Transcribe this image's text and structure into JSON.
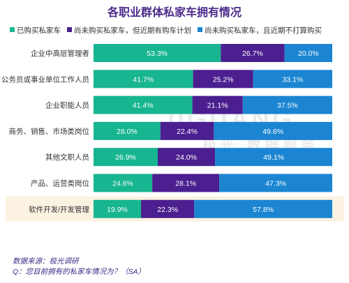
{
  "title": "各职业群体私家车拥有情况",
  "watermark": {
    "en": "JIGUANG",
    "cn": "极光 数据服务"
  },
  "chart_data": {
    "type": "bar",
    "orientation": "horizontal",
    "stacked": true,
    "percent_unit": "%",
    "categories": [
      "企业中高层管理者",
      "公务员或事业单位工作人员",
      "企业职能人员",
      "商务、销售、市场类岗位",
      "其他文职人员",
      "产品、运营类岗位",
      "软件开发/开发管理"
    ],
    "highlighted_category": "软件开发/开发管理",
    "series": [
      {
        "name": "已购买私家车",
        "color": "#17b590",
        "values": [
          53.3,
          41.7,
          41.4,
          28.0,
          26.9,
          24.6,
          19.9
        ]
      },
      {
        "name": "尚未购买私家车，但近期有购车计划",
        "color": "#4b1f8f",
        "values": [
          26.7,
          25.2,
          21.1,
          22.4,
          24.0,
          28.1,
          22.3
        ]
      },
      {
        "name": "尚未购买私家车，且近期不打算购买",
        "color": "#1b85d2",
        "values": [
          20.0,
          33.1,
          37.5,
          49.6,
          49.1,
          47.3,
          57.8
        ]
      }
    ]
  },
  "footer": {
    "source": "数据来源：极光调研",
    "question": "Q：您目前拥有的私家车情况为？（SA）"
  }
}
